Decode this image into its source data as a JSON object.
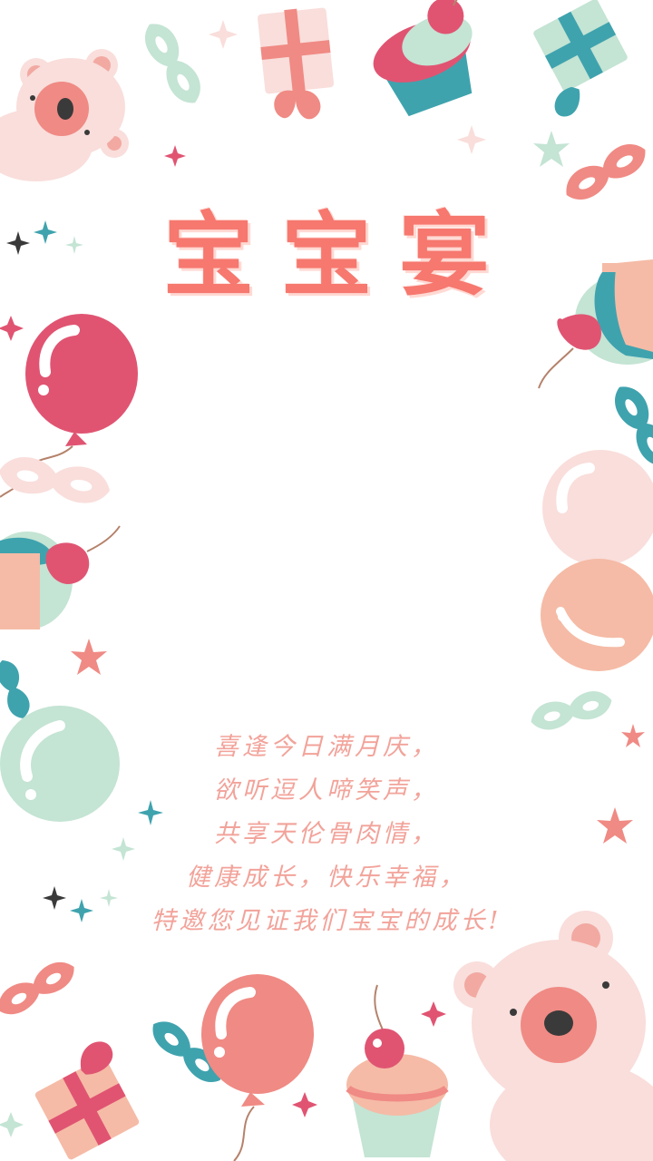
{
  "title": "宝宝宴",
  "poem": [
    "喜逢今日满月庆，",
    "欲听逗人啼笑声，",
    "共享天伦骨肉情，",
    "健康成长，快乐幸福，",
    "特邀您见证我们宝宝的成长!"
  ],
  "colors": {
    "title": "#f6786f",
    "poem": "#f2a39a",
    "pink_light": "#f9dedb",
    "pink": "#f08a84",
    "magenta": "#e05472",
    "teal": "#3fa3ae",
    "mint": "#c4e4d4",
    "peach": "#f5bba6"
  }
}
